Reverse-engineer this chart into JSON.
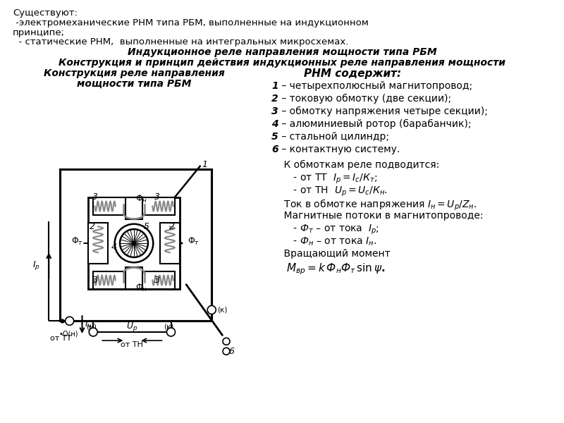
{
  "bg_color": "#ffffff",
  "text_color": "#000000",
  "line_color": "#000000",
  "gray_color": "#888888",
  "title_lines": [
    "Существуют:",
    " -электромеханические РНМ типа РБМ, выполненные на индукционном",
    "принципе;",
    "  - статические РНМ,  выполненные на интегральных микросхемах."
  ],
  "subtitle1": "Индукционное реле направления мощности типа РБМ",
  "subtitle2": "Конструкция и принцип действия индукционных реле направления мощности",
  "left_title1": "Конструкция реле направления",
  "left_title2": "мощности типа РБМ",
  "right_title": "РНМ содержит:",
  "right_items_bold": [
    "1",
    "2",
    "3",
    "4",
    "5",
    "6"
  ],
  "right_items_text": [
    " – четырехполюсный магнитопровод;",
    " – токовую обмотку (две секции);",
    " – обмотку напряжения четыре секции);",
    " – алюминиевый ротор (барабанчик);",
    " – стальной цилиндр;",
    " – контактную систему."
  ]
}
